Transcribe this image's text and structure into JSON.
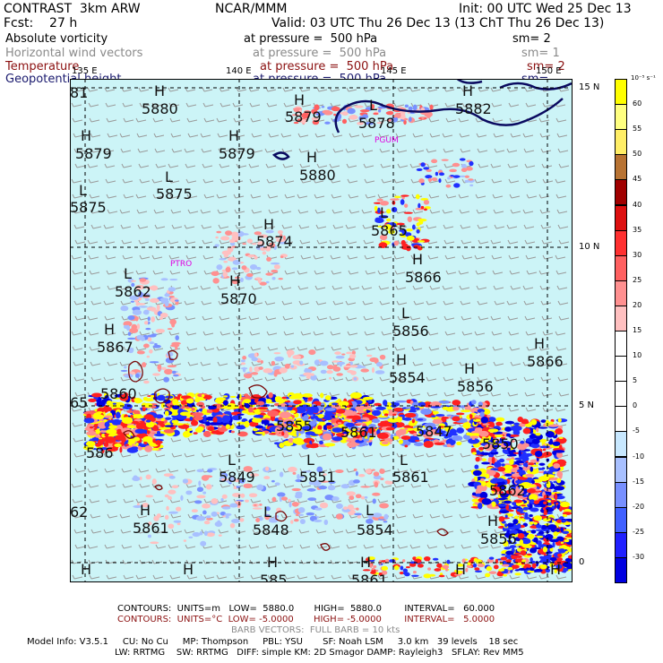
{
  "header": {
    "line1_left": "CONTRAST  3km ARW",
    "line1_mid": "NCAR/MMM",
    "line1_right": "Init: 00 UTC Wed 25 Dec 13",
    "line2_left": "Fcst:    27 h",
    "line2_right": "Valid: 03 UTC Thu 26 Dec 13 (13 ChT Thu 26 Dec 13)"
  },
  "fields": [
    {
      "name": "Absolute vorticity",
      "pressure": "at pressure =  500 hPa",
      "sm": "sm= 2",
      "color": "#000000"
    },
    {
      "name": "Horizontal wind vectors",
      "pressure": "at pressure =  500 hPa",
      "sm": "sm= 1",
      "color": "#8a8a8a"
    },
    {
      "name": "Temperature",
      "pressure": "at pressure =  500 hPa",
      "sm": "sm= 2",
      "color": "#8b1010"
    },
    {
      "name": "Geopotential height",
      "pressure": "at pressure =  500 hPa",
      "sm": "sm=",
      "color": "#1a1a6e"
    }
  ],
  "axes": {
    "lon_labels": [
      "135 E",
      "140 E",
      "145 E",
      "150 E"
    ],
    "lat_labels": [
      "15 N",
      "10 N",
      "5 N",
      "0"
    ]
  },
  "map": {
    "height_labels": [
      {
        "t": "H",
        "v": "5880"
      },
      {
        "t": "H",
        "v": "5879"
      },
      {
        "t": "L",
        "v": "5878"
      },
      {
        "t": "H",
        "v": "5882"
      },
      {
        "t": "H",
        "v": "5879"
      },
      {
        "t": "H",
        "v": "5879"
      },
      {
        "t": "H",
        "v": "5880"
      },
      {
        "t": "L",
        "v": "5875"
      },
      {
        "t": "L",
        "v": "5875"
      },
      {
        "t": "L",
        "v": "5865"
      },
      {
        "t": "H",
        "v": "5874"
      },
      {
        "t": "H",
        "v": "5866"
      },
      {
        "t": "L",
        "v": "5862"
      },
      {
        "t": "H",
        "v": "5870"
      },
      {
        "t": "L",
        "v": "5856"
      },
      {
        "t": "H",
        "v": "5867"
      },
      {
        "t": "H",
        "v": "5866"
      },
      {
        "t": "H",
        "v": "5854"
      },
      {
        "t": "H",
        "v": "5856"
      },
      {
        "t": "",
        "v": "5860"
      },
      {
        "t": "",
        "v": "5855"
      },
      {
        "t": "",
        "v": "5861"
      },
      {
        "t": "",
        "v": "5847"
      },
      {
        "t": "",
        "v": "5850"
      },
      {
        "t": "",
        "v": "586"
      },
      {
        "t": "L",
        "v": "5849"
      },
      {
        "t": "L",
        "v": "5851"
      },
      {
        "t": "L",
        "v": "5861"
      },
      {
        "t": "",
        "v": "5862"
      },
      {
        "t": "H",
        "v": "5861"
      },
      {
        "t": "L",
        "v": "5848"
      },
      {
        "t": "L",
        "v": "5854"
      },
      {
        "t": "H",
        "v": "5856"
      },
      {
        "t": "",
        "v": "62"
      },
      {
        "t": "",
        "v": "81"
      },
      {
        "t": "",
        "v": "65"
      }
    ],
    "bottom_H": [
      "H",
      "H",
      "H",
      "H",
      "H",
      "H"
    ],
    "bottom_partial": [
      "585",
      "5861"
    ],
    "place_tags": [
      "PGUM",
      "PTRO"
    ]
  },
  "colorbar": {
    "unit": "10⁻⁵ s⁻¹",
    "labels": [
      "60",
      "55",
      "50",
      "45",
      "40",
      "35",
      "30",
      "25",
      "20",
      "15",
      "10",
      "5",
      "0",
      "-5",
      "-10",
      "-15",
      "-20",
      "-25",
      "-30"
    ],
    "colors": [
      "#ffff00",
      "#ffff80",
      "#ffee66",
      "#b87333",
      "#a00000",
      "#dd1010",
      "#ff3030",
      "#ff6060",
      "#ff9090",
      "#ffc0c0",
      "#ffffff",
      "#ffffff",
      "#ffffff",
      "#ffffff",
      "#c8e8ff",
      "#a8c0ff",
      "#7890ff",
      "#4060ff",
      "#2020ff",
      "#0000e0"
    ]
  },
  "footer": {
    "contours1": "CONTOURS:  UNITS=m   LOW=  5880.0       HIGH=  5880.0        INTERVAL=   60.000",
    "contours2": "CONTOURS:  UNITS=°C  LOW= -5.0000       HIGH= -5.0000        INTERVAL=   5.0000",
    "barbs": "BARB VECTORS:  FULL BARB = 10 kts",
    "model1": "Model Info: V3.5.1     CU: No Cu     MP: Thompson     PBL: YSU       SF: Noah LSM     3.0 km   39 levels    18 sec",
    "model2": "LW: RRTMG    SW: RRTMG   DIFF: simple KM: 2D Smagor DAMP: Rayleigh3   SFLAY: Rev MM5"
  }
}
